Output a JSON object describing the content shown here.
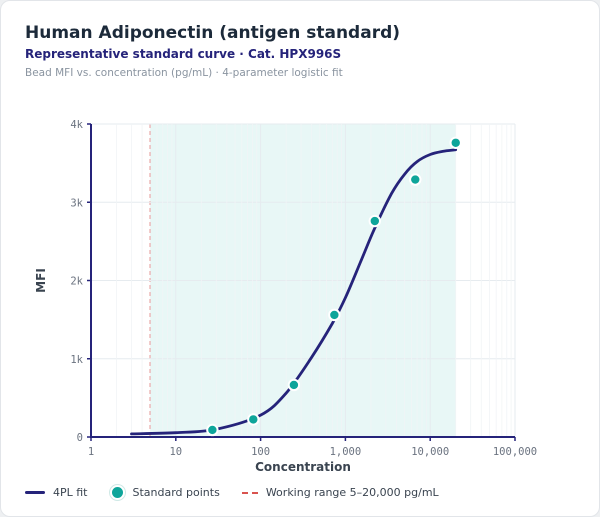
{
  "header": {
    "title": "Human Adiponectin (antigen standard)",
    "subtitle": "Representative standard curve · Cat. HPX996S",
    "note": "Bead MFI vs. concentration (pg/mL) · 4-parameter logistic fit"
  },
  "legend": {
    "fit_label": "4PL fit",
    "points_label": "Standard points",
    "range_label": "Working range  5–20,000 pg/mL"
  },
  "colors": {
    "fit": "#25237a",
    "points": "#0ea59a",
    "range_line": "#d9534f",
    "range_fill": "#e8f7f6",
    "grid": "#e6ebef"
  },
  "chart_data": {
    "type": "line",
    "xlabel": "Concentration",
    "ylabel": "MFI",
    "xscale": "log",
    "xlim": [
      1,
      100000
    ],
    "ylim": [
      0,
      4000
    ],
    "x_ticks": [
      1,
      10,
      100,
      1000,
      10000,
      100000
    ],
    "x_tick_labels": [
      "1",
      "10",
      "100",
      "1,000",
      "10,000",
      "100,000"
    ],
    "y_ticks": [
      0,
      1000,
      2000,
      3000,
      4000
    ],
    "y_tick_labels": [
      "0",
      "1k",
      "2k",
      "3k",
      "4k"
    ],
    "grid": true,
    "legend_position": "bottom",
    "working_range": [
      5,
      20000
    ],
    "series": [
      {
        "name": "Standard points",
        "kind": "scatter",
        "x": [
          27,
          82,
          247,
          741,
          2222,
          6667,
          20000
        ],
        "y": [
          90,
          225,
          665,
          1560,
          2760,
          3290,
          3760
        ]
      },
      {
        "name": "4PL fit",
        "kind": "line",
        "x": [
          3,
          10,
          30,
          100,
          200,
          400,
          700,
          1000,
          1500,
          2200,
          3500,
          5000,
          7000,
          10000,
          14000,
          20000
        ],
        "y": [
          40,
          55,
          100,
          280,
          560,
          1020,
          1450,
          1780,
          2230,
          2660,
          3110,
          3360,
          3520,
          3610,
          3650,
          3670
        ]
      }
    ]
  }
}
